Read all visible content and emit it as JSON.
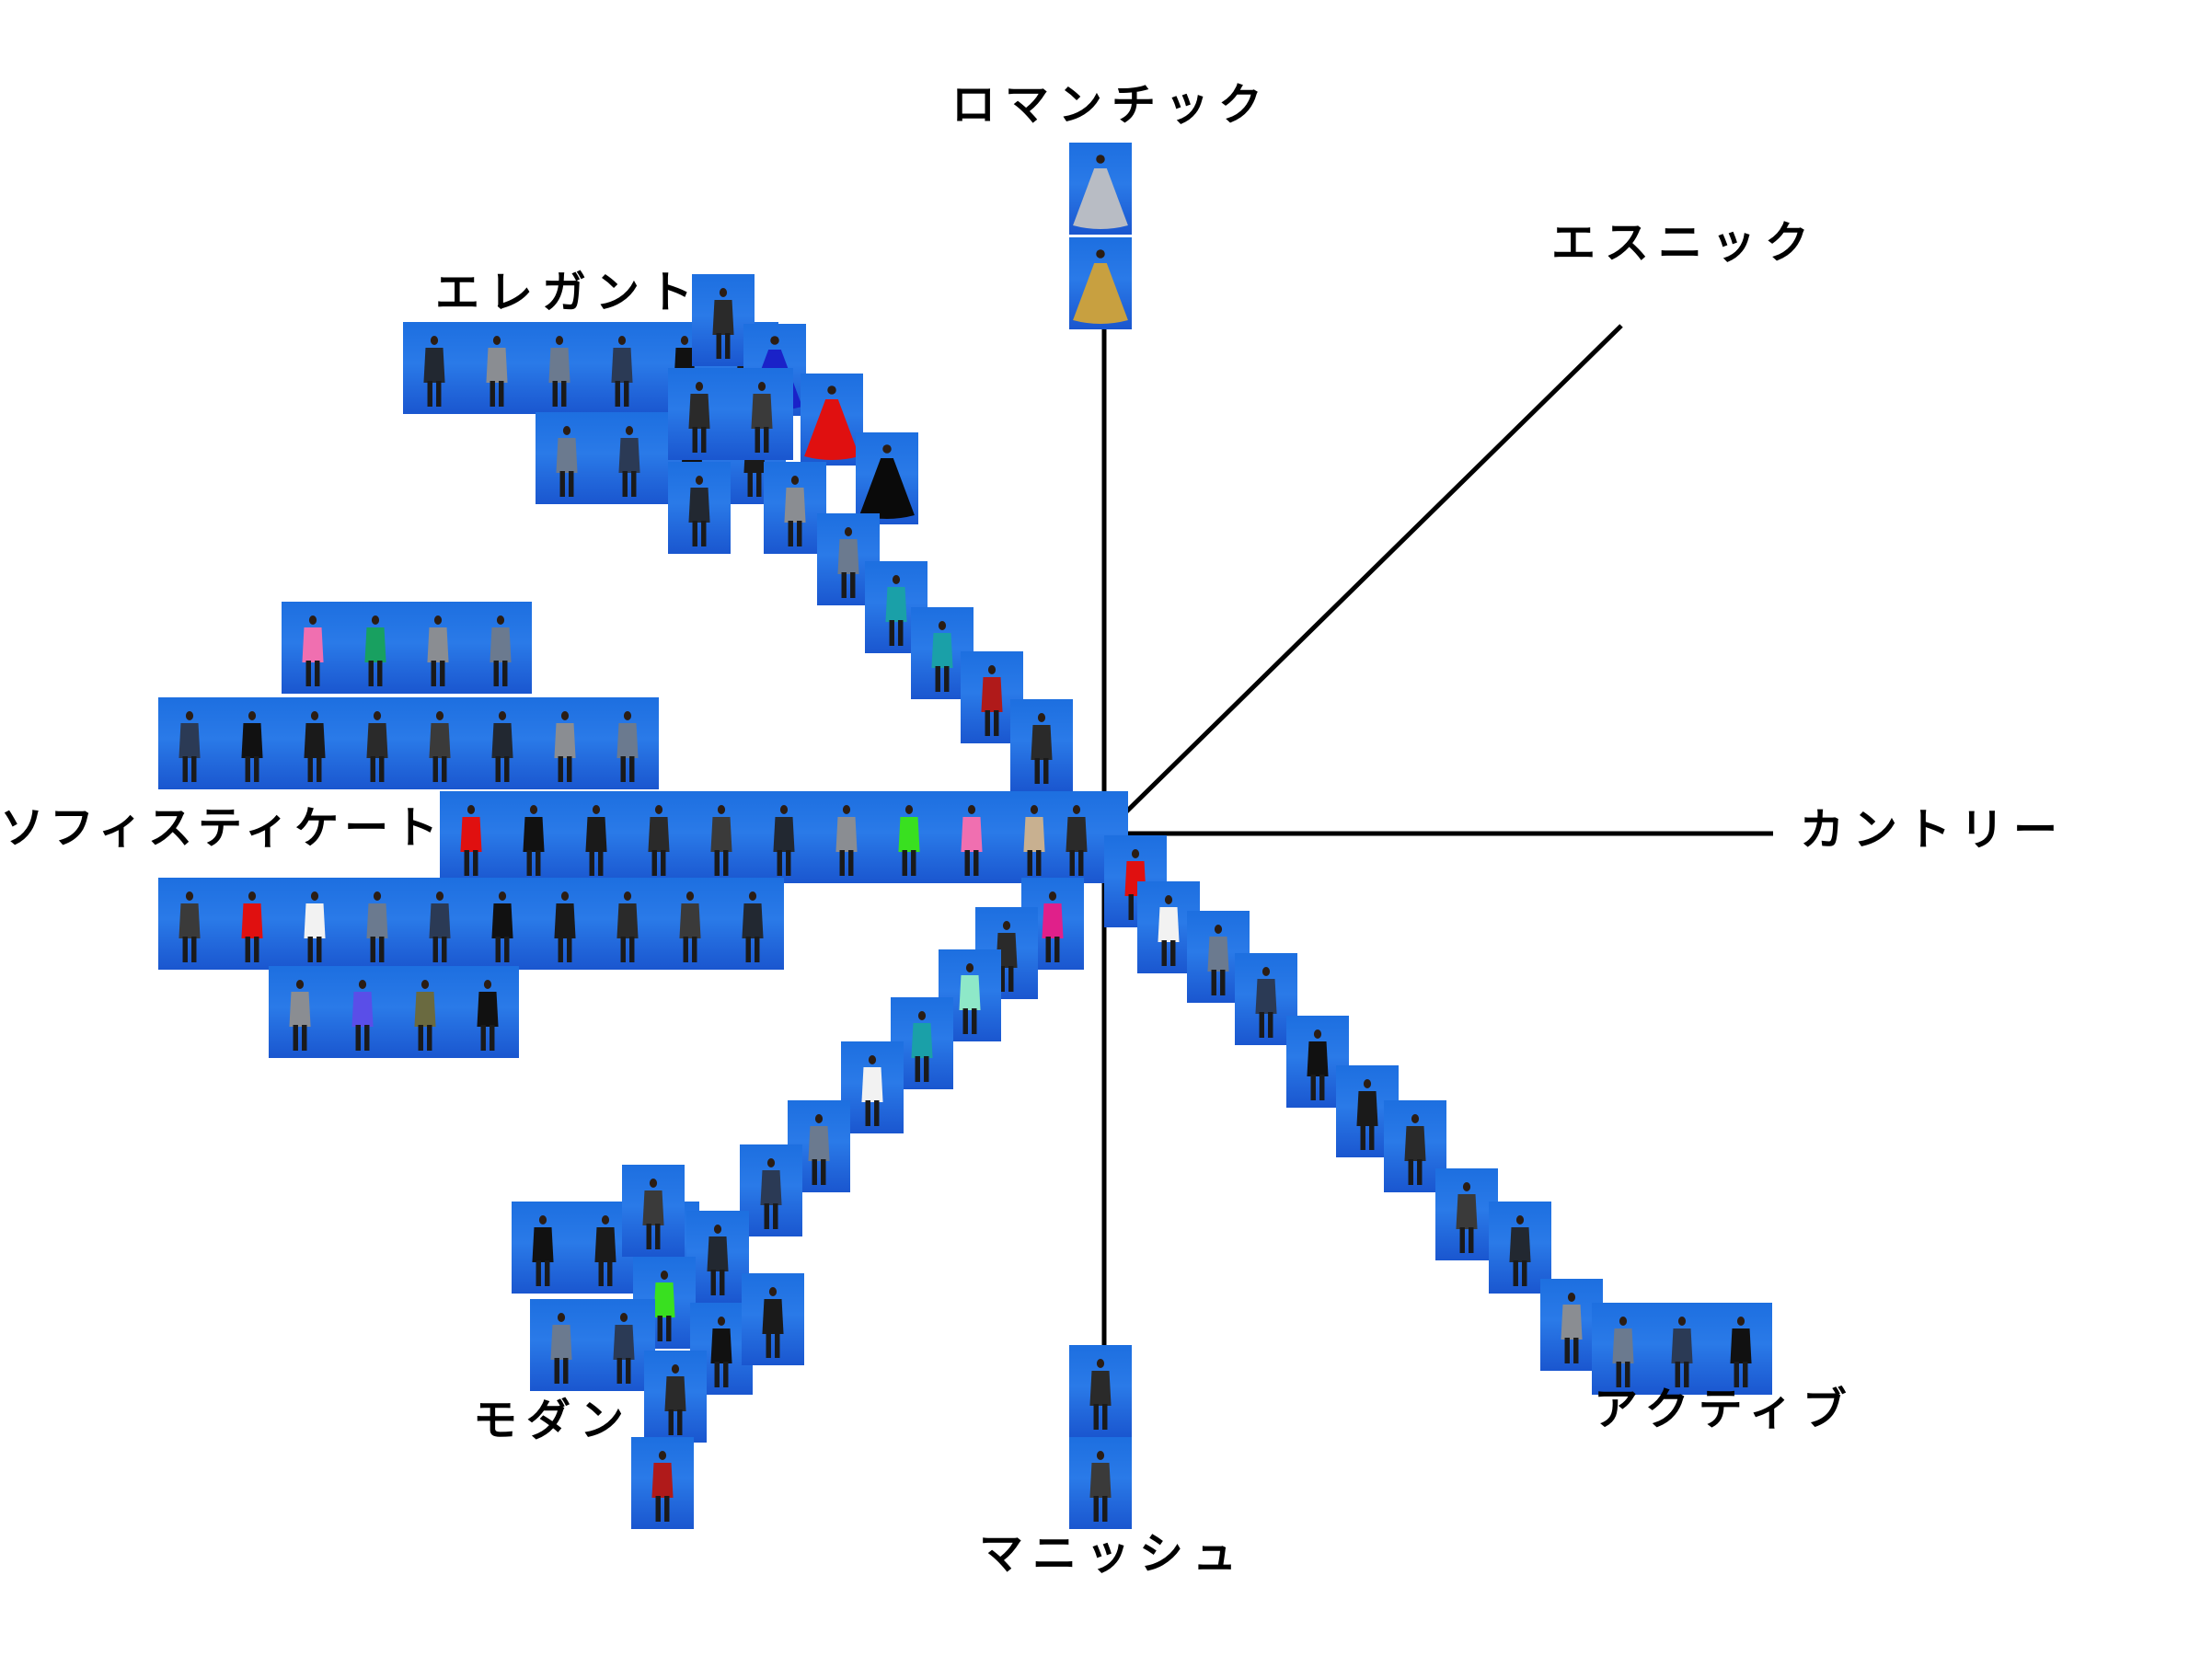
{
  "axes": [
    {
      "key": "romantic",
      "label": "ロマンチック"
    },
    {
      "key": "ethnic",
      "label": "エスニック"
    },
    {
      "key": "country",
      "label": "カントリー"
    },
    {
      "key": "active",
      "label": "アクティブ"
    },
    {
      "key": "mannish",
      "label": "マニッシュ"
    },
    {
      "key": "modern",
      "label": "モダン"
    },
    {
      "key": "sophisticated",
      "label": "ソフィスティケート"
    },
    {
      "key": "elegant",
      "label": "エレガント"
    }
  ],
  "colors": {
    "line": "#000000",
    "photo_bg_top": "#1d6fe0",
    "photo_bg_bottom": "#1a56cf",
    "garment_palette": [
      "#111111",
      "#1a1a1a",
      "#2a2a2a",
      "#3a3a3a",
      "#222831",
      "#8a8d92",
      "#6b7a8f",
      "#2b3a55"
    ],
    "accent_garments": {
      "red": "#e01010",
      "royal_blue": "#1a22c8",
      "pink": "#f06fb0",
      "green": "#18a060",
      "lime": "#39e020",
      "violet": "#5a4ee8",
      "silver": "#b8bcc4",
      "gold": "#c8a040",
      "teal": "#1aa0a8",
      "mint": "#8ee8c8",
      "white": "#f2f2f2",
      "beige": "#c8b090",
      "olive": "#6a6a40",
      "maroon": "#b01a1a",
      "magenta": "#e0208a"
    }
  }
}
